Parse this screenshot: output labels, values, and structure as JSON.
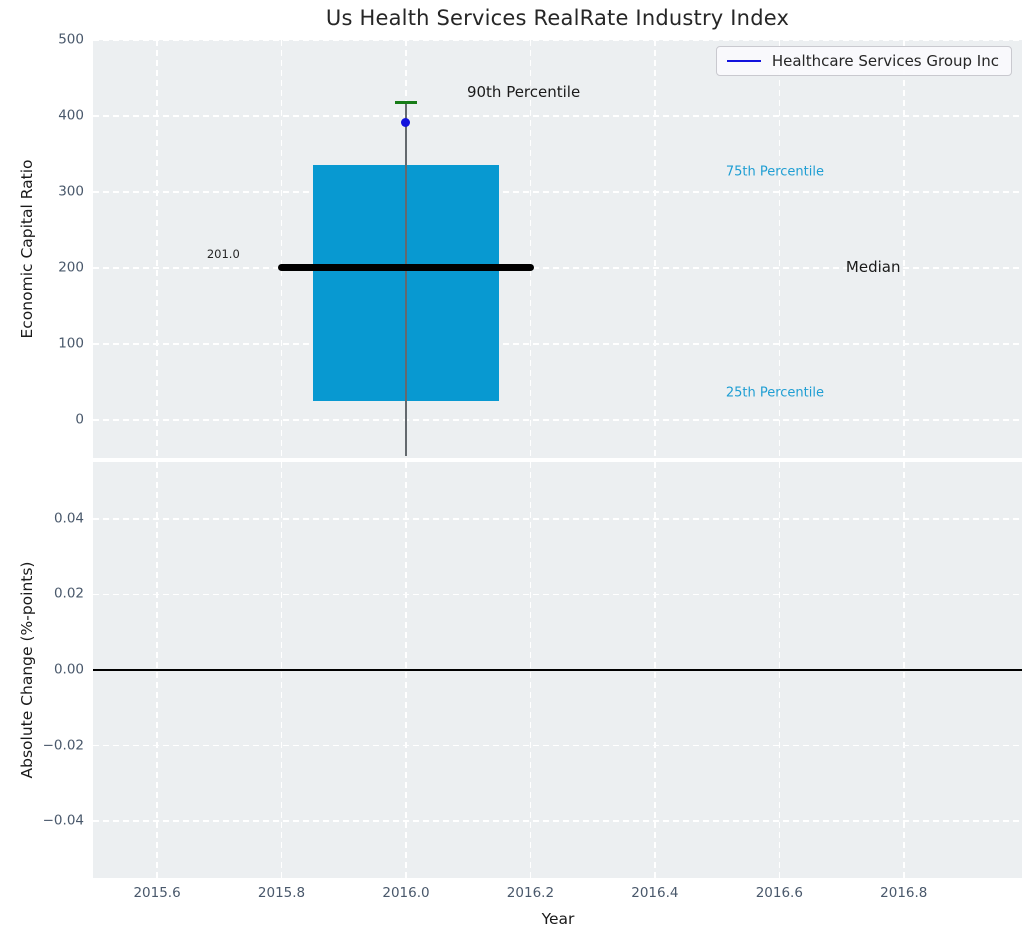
{
  "figure": {
    "title": "Us Health Services RealRate Industry Index"
  },
  "colors": {
    "axes_bg": "#eceff1",
    "grid": "#ffffff",
    "tick_label": "#49586b",
    "title_text": "#262626",
    "box_fill": "#0899d1",
    "percentile_label": "#1f9ed3",
    "median_line": "#000000",
    "whisker": "#63696e",
    "p90_cap": "#177c17",
    "company_marker": "#1212dd",
    "zero_line": "#000000"
  },
  "chart_data": [
    {
      "type": "box",
      "panel": "top",
      "title": "Us Health Services RealRate Industry Index",
      "ylabel": "Economic Capital Ratio",
      "xlim": [
        2015.497,
        2016.99
      ],
      "ylim": [
        -50,
        500
      ],
      "grid": true,
      "yticks": [
        {
          "v": 0,
          "label": "0"
        },
        {
          "v": 100,
          "label": "100"
        },
        {
          "v": 200,
          "label": "200"
        },
        {
          "v": 300,
          "label": "300"
        },
        {
          "v": 400,
          "label": "400"
        },
        {
          "v": 500,
          "label": "500"
        }
      ],
      "xticks": [
        {
          "v": 2015.6
        },
        {
          "v": 2015.8
        },
        {
          "v": 2016.0
        },
        {
          "v": 2016.2
        },
        {
          "v": 2016.4
        },
        {
          "v": 2016.6
        },
        {
          "v": 2016.8
        }
      ],
      "show_xtick_labels": false,
      "legend": {
        "position": "upper right",
        "entries": [
          {
            "label": "Healthcare Services Group Inc",
            "color": "#1212dd"
          }
        ]
      },
      "box": {
        "center_x": 2016.0,
        "q25": 25,
        "median": 201.0,
        "q75": 335,
        "p90": 418,
        "box_x": [
          2015.85,
          2016.15
        ],
        "median_x": [
          2015.795,
          2016.205
        ],
        "cap_x": [
          2015.982,
          2016.018
        ],
        "whisker_bottom": -50
      },
      "company_point": {
        "label": "Healthcare Services Group Inc",
        "x": 2016.0,
        "y": 392
      },
      "annotations": [
        {
          "name": "p90-label",
          "text": "90th Percentile",
          "x": 2016.098,
          "y": 431,
          "size": 15,
          "color": "#1a1a1a"
        },
        {
          "name": "median-value-label",
          "text": "201.0",
          "x": 2015.68,
          "y": 218,
          "size": 11.5,
          "color": "#262626"
        },
        {
          "name": "p75-label",
          "text": "75th Percentile",
          "x": 2016.514,
          "y": 326,
          "size": 13,
          "color": "#1f9ed3"
        },
        {
          "name": "median-label",
          "text": "Median",
          "x": 2016.707,
          "y": 201,
          "size": 15,
          "color": "#1a1a1a"
        },
        {
          "name": "p25-label",
          "text": "25th Percentile",
          "x": 2016.514,
          "y": 35,
          "size": 13,
          "color": "#1f9ed3"
        }
      ]
    },
    {
      "type": "line",
      "panel": "bottom",
      "ylabel": "Absolute Change (%-points)",
      "xlabel": "Year",
      "xlim": [
        2015.497,
        2016.99
      ],
      "ylim": [
        -0.055,
        0.055
      ],
      "grid": true,
      "yticks": [
        {
          "v": 0.04,
          "label": "0.04"
        },
        {
          "v": 0.02,
          "label": "0.02"
        },
        {
          "v": 0.0,
          "label": "0.00"
        },
        {
          "v": -0.02,
          "label": "−0.02"
        },
        {
          "v": -0.04,
          "label": "−0.04"
        }
      ],
      "xticks": [
        {
          "v": 2015.6,
          "label": "2015.6"
        },
        {
          "v": 2015.8,
          "label": "2015.8"
        },
        {
          "v": 2016.0,
          "label": "2016.0"
        },
        {
          "v": 2016.2,
          "label": "2016.2"
        },
        {
          "v": 2016.4,
          "label": "2016.4"
        },
        {
          "v": 2016.6,
          "label": "2016.6"
        },
        {
          "v": 2016.8,
          "label": "2016.8"
        }
      ],
      "show_xtick_labels": true,
      "zero_line": 0.0,
      "series": []
    }
  ]
}
